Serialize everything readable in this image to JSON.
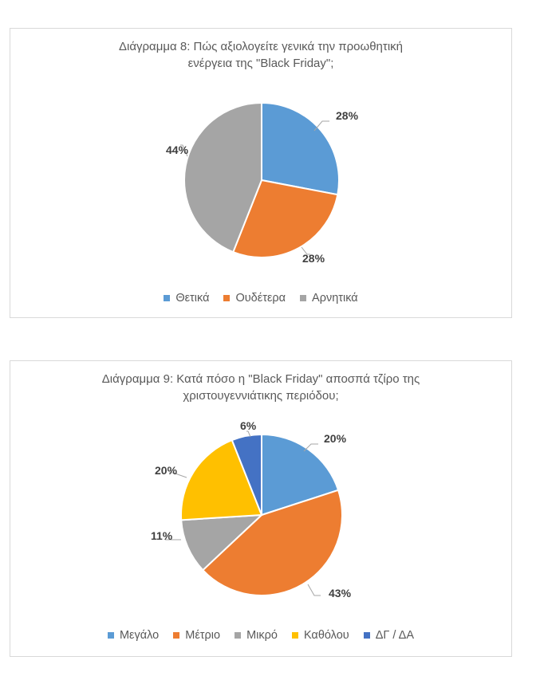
{
  "chart_data": [
    {
      "type": "pie",
      "title_lines": [
        "Διάγραμμα 8: Πώς αξιολογείτε γενικά την προωθητική",
        "ενέργεια της \"Black Friday\";"
      ],
      "categories": [
        "Θετικά",
        "Ουδέτερα",
        "Αρνητικά"
      ],
      "values": [
        28,
        28,
        44
      ],
      "labels": [
        "28%",
        "28%",
        "44%"
      ],
      "colors": [
        "#5B9BD5",
        "#ED7D31",
        "#A5A5A5"
      ],
      "legend_position": "bottom"
    },
    {
      "type": "pie",
      "title_lines": [
        "Διάγραμμα 9: Κατά πόσο η \"Black Friday\" αποσπά τζίρο της",
        "χριστουγεννιάτικης περιόδου;"
      ],
      "categories": [
        "Μεγάλο",
        "Μέτριο",
        "Μικρό",
        "Καθόλου",
        "ΔΓ / ΔΑ"
      ],
      "values": [
        20,
        43,
        11,
        20,
        6
      ],
      "labels": [
        "20%",
        "43%",
        "11%",
        "20%",
        "6%"
      ],
      "colors": [
        "#5B9BD5",
        "#ED7D31",
        "#A5A5A5",
        "#FFC000",
        "#4472C4"
      ],
      "legend_position": "bottom"
    }
  ]
}
